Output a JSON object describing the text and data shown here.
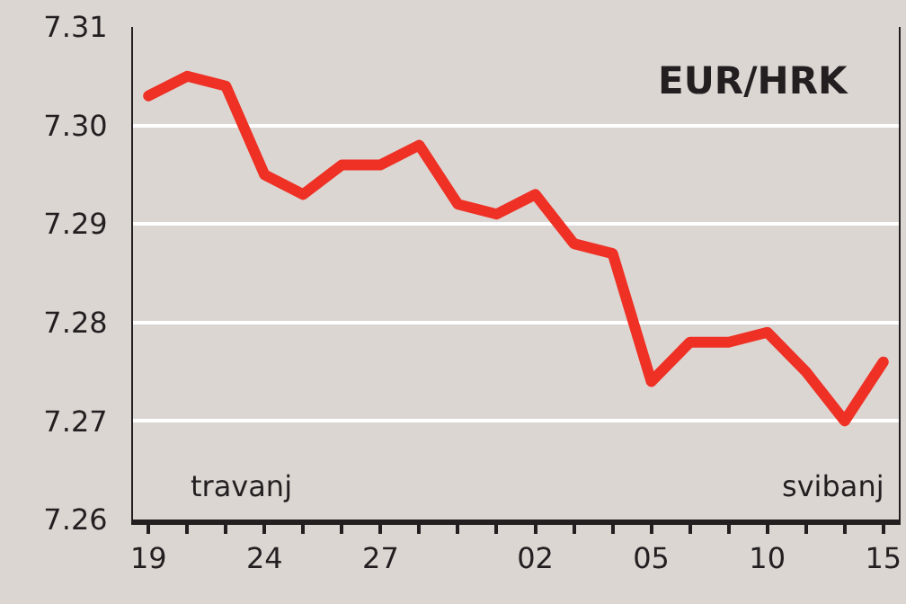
{
  "chart_data": {
    "type": "line",
    "title": "EUR/HRK",
    "categories": [
      "19",
      null,
      null,
      "24",
      null,
      null,
      "27",
      null,
      null,
      null,
      "02",
      null,
      null,
      "05",
      null,
      null,
      "10",
      null,
      null,
      "15"
    ],
    "series": [
      {
        "color": "#ee3124",
        "values": [
          7.303,
          7.305,
          7.304,
          7.295,
          7.293,
          7.296,
          7.296,
          7.298,
          7.292,
          7.291,
          7.293,
          7.288,
          7.287,
          7.274,
          7.278,
          7.278,
          7.279,
          7.275,
          7.27,
          7.276
        ]
      }
    ],
    "ylim": [
      7.26,
      7.31
    ],
    "yticks": [
      7.26,
      7.27,
      7.28,
      7.29,
      {
        "value": 7.3,
        "label": "7.30"
      },
      7.31
    ],
    "grid": "y",
    "marker": "none",
    "line_style": "solid",
    "annotations": [
      "travanj",
      "svibanj"
    ]
  }
}
